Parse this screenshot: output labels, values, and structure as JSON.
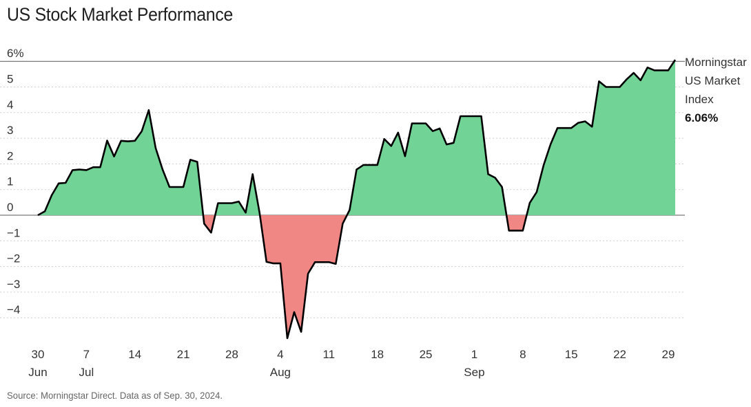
{
  "chart_data": {
    "type": "area",
    "title": "US Stock Market Performance",
    "source": "Source: Morningstar Direct. Data as of Sep. 30, 2024.",
    "xlabel": "",
    "ylabel": "",
    "ylim": [
      -5,
      6
    ],
    "unit": "%",
    "y_ticks": [
      {
        "value": 6,
        "label": "6%"
      },
      {
        "value": 5,
        "label": "5"
      },
      {
        "value": 4,
        "label": "4"
      },
      {
        "value": 3,
        "label": "3"
      },
      {
        "value": 2,
        "label": "2"
      },
      {
        "value": 1,
        "label": "1"
      },
      {
        "value": 0,
        "label": "0"
      },
      {
        "value": -1,
        "label": "−1"
      },
      {
        "value": -2,
        "label": "−2"
      },
      {
        "value": -3,
        "label": "−3"
      },
      {
        "value": -4,
        "label": "−4"
      }
    ],
    "x_ticks": [
      {
        "day": 0,
        "label": "30",
        "month": "Jun"
      },
      {
        "day": 7,
        "label": "7",
        "month": "Jul"
      },
      {
        "day": 14,
        "label": "14",
        "month": ""
      },
      {
        "day": 21,
        "label": "21",
        "month": ""
      },
      {
        "day": 28,
        "label": "28",
        "month": ""
      },
      {
        "day": 35,
        "label": "4",
        "month": "Aug"
      },
      {
        "day": 42,
        "label": "11",
        "month": ""
      },
      {
        "day": 49,
        "label": "18",
        "month": ""
      },
      {
        "day": 56,
        "label": "25",
        "month": ""
      },
      {
        "day": 63,
        "label": "1",
        "month": "Sep"
      },
      {
        "day": 70,
        "label": "8",
        "month": ""
      },
      {
        "day": 77,
        "label": "15",
        "month": ""
      },
      {
        "day": 84,
        "label": "22",
        "month": ""
      },
      {
        "day": 91,
        "label": "29",
        "month": ""
      }
    ],
    "xlim_days": [
      0,
      92
    ],
    "positive_color": "#72d396",
    "negative_color": "#f08784",
    "line_color": "#000000",
    "series": [
      {
        "name": "Morningstar US Market Index",
        "legend_lines": [
          "Morningstar",
          "US Market",
          "Index"
        ],
        "final_label": "6.06%",
        "x_days": [
          0,
          1,
          2,
          3,
          4,
          5,
          6,
          7,
          8,
          9,
          10,
          11,
          12,
          13,
          14,
          15,
          16,
          17,
          18,
          19,
          20,
          21,
          22,
          23,
          24,
          25,
          26,
          27,
          28,
          29,
          30,
          31,
          32,
          33,
          34,
          35,
          36,
          37,
          38,
          39,
          40,
          41,
          42,
          43,
          44,
          45,
          46,
          47,
          48,
          49,
          50,
          51,
          52,
          53,
          54,
          55,
          56,
          57,
          58,
          59,
          60,
          61,
          62,
          63,
          64,
          65,
          66,
          67,
          68,
          69,
          70,
          71,
          72,
          73,
          74,
          75,
          76,
          77,
          78,
          79,
          80,
          81,
          82,
          83,
          84,
          85,
          86,
          87,
          88,
          89,
          90,
          91,
          92
        ],
        "values": [
          0.0,
          0.15,
          0.78,
          1.24,
          1.26,
          1.76,
          1.78,
          1.76,
          1.87,
          1.87,
          2.91,
          2.29,
          2.9,
          2.88,
          2.9,
          3.28,
          4.1,
          2.62,
          1.78,
          1.1,
          1.1,
          1.1,
          2.16,
          2.08,
          -0.33,
          -0.68,
          0.47,
          0.47,
          0.47,
          0.53,
          0.1,
          1.6,
          0.1,
          -1.82,
          -1.88,
          -1.88,
          -4.8,
          -3.78,
          -4.55,
          -2.28,
          -1.83,
          -1.83,
          -1.83,
          -1.9,
          -0.33,
          0.2,
          1.78,
          1.96,
          1.96,
          1.96,
          2.97,
          2.7,
          3.22,
          2.3,
          3.58,
          3.58,
          3.58,
          3.28,
          3.38,
          2.76,
          2.82,
          3.86,
          3.86,
          3.86,
          3.86,
          1.6,
          1.46,
          1.1,
          -0.6,
          -0.6,
          -0.6,
          0.48,
          0.9,
          1.95,
          2.76,
          3.4,
          3.4,
          3.4,
          3.6,
          3.66,
          3.45,
          5.22,
          5.0,
          5.0,
          5.0,
          5.3,
          5.55,
          5.26,
          5.76,
          5.65,
          5.65,
          5.65,
          6.06
        ]
      }
    ]
  }
}
